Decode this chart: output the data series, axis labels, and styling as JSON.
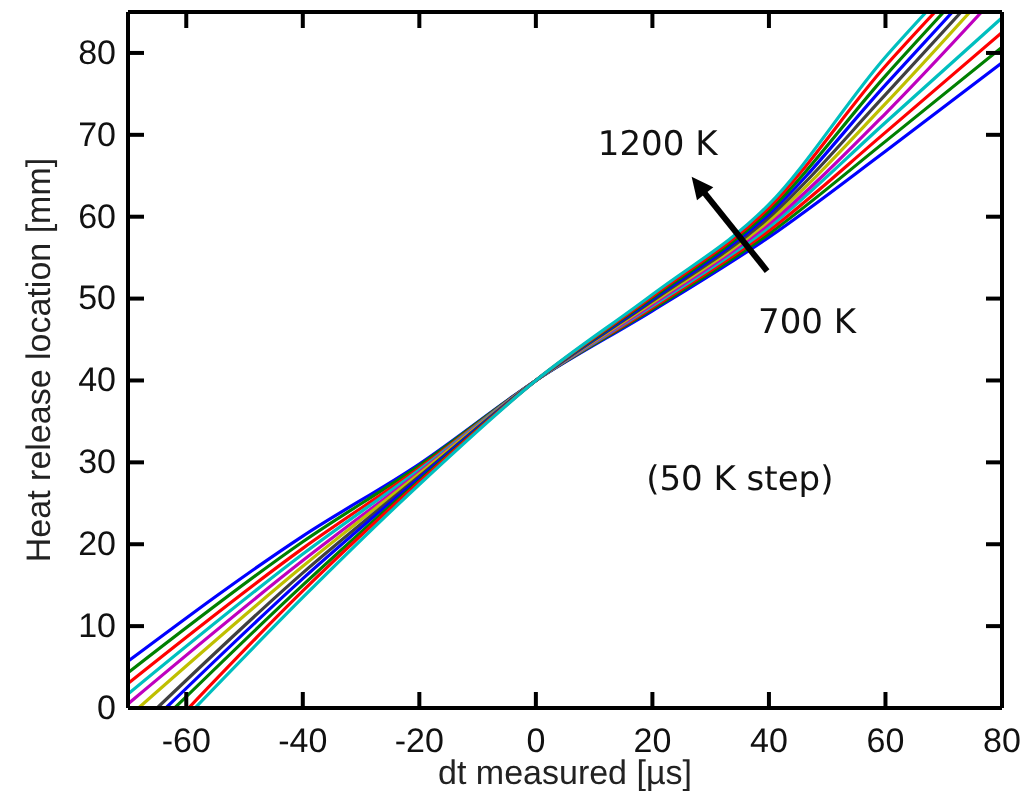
{
  "chart_data": {
    "type": "line",
    "xlabel": "dt measured [µs]",
    "ylabel": "Heat release location [mm]",
    "xlim": [
      -70,
      80
    ],
    "ylim": [
      0,
      85
    ],
    "xticks": [
      -60,
      -40,
      -20,
      0,
      20,
      40,
      60,
      80
    ],
    "yticks": [
      0,
      10,
      20,
      30,
      40,
      50,
      60,
      70,
      80
    ],
    "grid": false,
    "marker": "none",
    "line_style": "solid",
    "annotations": [
      "1200 K",
      "700 K",
      "(50 K step)"
    ],
    "series": [
      {
        "color": "#0000ff",
        "x": [
          -70,
          -40,
          -20,
          0,
          20,
          40,
          60,
          80
        ],
        "values": [
          5.7,
          21,
          29.8,
          40,
          48.5,
          57.5,
          68,
          78.8
        ]
      },
      {
        "color": "#008000",
        "x": [
          -70,
          -40,
          -20,
          0,
          20,
          40,
          60,
          80
        ],
        "values": [
          4.3,
          20.3,
          29.6,
          40,
          48.7,
          57.9,
          69.2,
          80.7
        ]
      },
      {
        "color": "#ff0000",
        "x": [
          -70,
          -40,
          -20,
          0,
          20,
          40,
          60,
          80
        ],
        "values": [
          3,
          19.5,
          29.3,
          40,
          48.9,
          58.3,
          70.3,
          82.5
        ]
      },
      {
        "color": "#00bfbf",
        "x": [
          -70,
          -40,
          -20,
          0,
          20,
          40,
          60,
          80
        ],
        "values": [
          1.7,
          18.8,
          29.1,
          40,
          49.1,
          58.7,
          71.5,
          84.3
        ]
      },
      {
        "color": "#bf00bf",
        "x": [
          -70,
          -40,
          -20,
          0,
          20,
          40,
          60,
          76.5
        ],
        "values": [
          0.5,
          18,
          28.8,
          40,
          49.3,
          59.1,
          72.6,
          85
        ]
      },
      {
        "color": "#bfbf00",
        "x": [
          -68.2,
          -40,
          -20,
          0,
          20,
          40,
          60,
          74.5
        ],
        "values": [
          0,
          17.3,
          28.6,
          40,
          49.5,
          59.5,
          73.8,
          85
        ]
      },
      {
        "color": "#404040",
        "x": [
          -65,
          -40,
          -20,
          0,
          20,
          40,
          60,
          73
        ],
        "values": [
          0,
          16.5,
          28.3,
          40,
          49.7,
          59.9,
          74.9,
          85
        ]
      },
      {
        "color": "#0000ff",
        "x": [
          -63.5,
          -40,
          -20,
          0,
          20,
          40,
          60,
          71.5
        ],
        "values": [
          0,
          15.8,
          28.1,
          40,
          49.9,
          60.3,
          76.1,
          85
        ]
      },
      {
        "color": "#008000",
        "x": [
          -62,
          -40,
          -20,
          0,
          20,
          40,
          60,
          70
        ],
        "values": [
          0,
          15,
          27.8,
          40,
          50.1,
          60.7,
          77.2,
          85
        ]
      },
      {
        "color": "#ff0000",
        "x": [
          -59.6,
          -40,
          -20,
          0,
          20,
          40,
          60,
          68.5
        ],
        "values": [
          0,
          14.3,
          27.6,
          40,
          50.3,
          61.1,
          78.4,
          85
        ]
      },
      {
        "color": "#00bfbf",
        "x": [
          -58.5,
          -40,
          -20,
          0,
          20,
          40,
          60,
          67
        ],
        "values": [
          0,
          13.5,
          27.3,
          40,
          50.5,
          61.5,
          79.5,
          85
        ]
      }
    ]
  }
}
